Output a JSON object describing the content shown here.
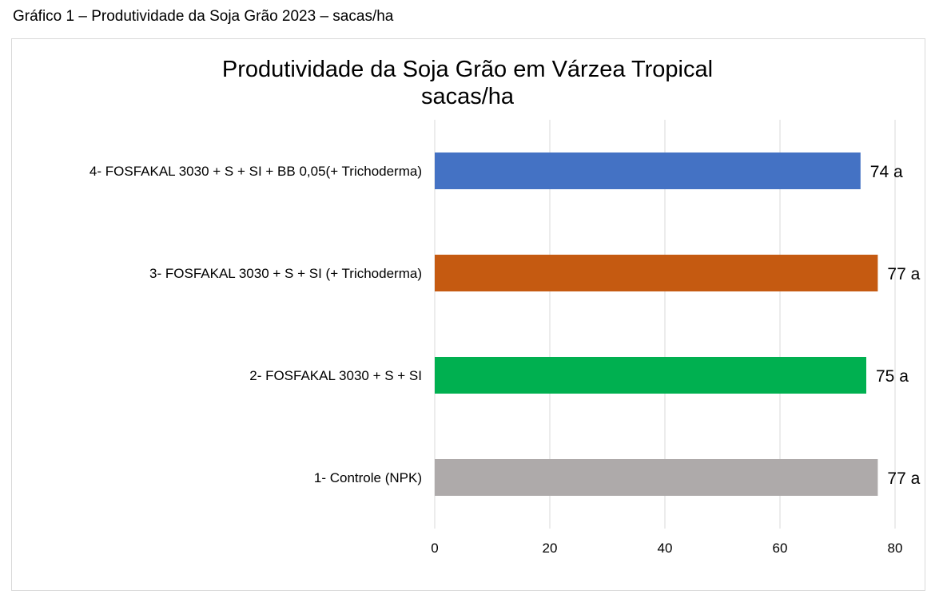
{
  "caption": "Gráfico 1 – Produtividade da Soja Grão 2023 – sacas/ha",
  "colors": {
    "gridline": "#d9d9d9",
    "frame": "#d9d9d9",
    "text": "#000000"
  },
  "chart_data": {
    "type": "bar",
    "orientation": "horizontal",
    "title": "Produtividade da Soja Grão em Várzea Tropical",
    "subtitle": "sacas/ha",
    "xlabel": "",
    "ylabel": "",
    "xlim": [
      0,
      80
    ],
    "x_ticks": [
      0,
      20,
      40,
      60,
      80
    ],
    "grid": true,
    "legend": "none",
    "categories": [
      "4- FOSFAKAL 3030 + S + SI + BB 0,05(+ Trichoderma)",
      "3- FOSFAKAL 3030 + S + SI (+ Trichoderma)",
      "2- FOSFAKAL 3030 + S + SI",
      "1- Controle (NPK)"
    ],
    "values": [
      74,
      77,
      75,
      77
    ],
    "data_labels": [
      "74 a",
      "77 a",
      "75 a",
      "77 a"
    ],
    "bar_colors": [
      "#4472c4",
      "#c55a11",
      "#00b050",
      "#aeaaaa"
    ]
  }
}
